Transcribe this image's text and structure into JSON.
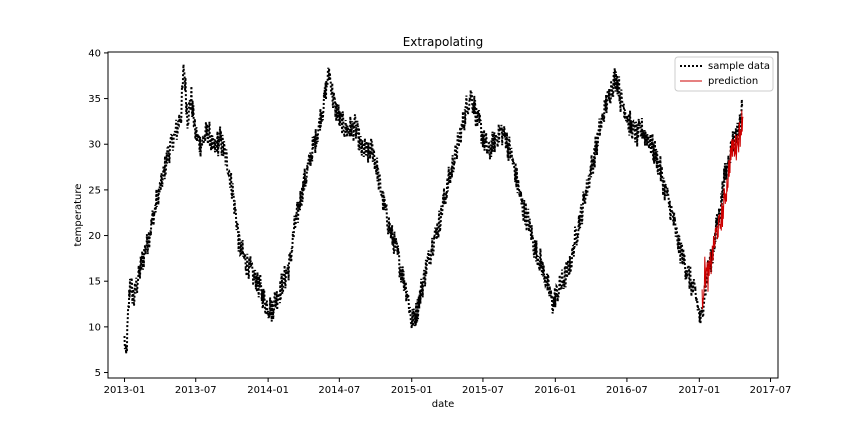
{
  "chart_data": {
    "type": "line",
    "title": "Extrapolating",
    "xlabel": "date",
    "ylabel": "temperature",
    "xlim": [
      "2012-11-20",
      "2017-07-20"
    ],
    "ylim": [
      4.4,
      40.1
    ],
    "xticks": [
      "2013-01",
      "2013-07",
      "2014-01",
      "2014-07",
      "2015-01",
      "2015-07",
      "2016-01",
      "2016-07",
      "2017-01",
      "2017-07"
    ],
    "yticks": [
      5,
      10,
      15,
      20,
      25,
      30,
      35,
      40
    ],
    "grid": false,
    "legend_position": "top-right",
    "series": [
      {
        "name": "sample data",
        "color": "#000000",
        "style": "dotted",
        "anchors": [
          [
            "2013-01-01",
            8.5
          ],
          [
            "2013-01-05",
            6.5
          ],
          [
            "2013-01-10",
            11
          ],
          [
            "2013-01-15",
            15
          ],
          [
            "2013-01-25",
            13
          ],
          [
            "2013-02-05",
            15.5
          ],
          [
            "2013-02-20",
            18
          ],
          [
            "2013-03-01",
            19.5
          ],
          [
            "2013-03-15",
            22
          ],
          [
            "2013-03-25",
            24
          ],
          [
            "2013-04-10",
            26.5
          ],
          [
            "2013-04-25",
            29.5
          ],
          [
            "2013-05-10",
            31
          ],
          [
            "2013-05-25",
            33.5
          ],
          [
            "2013-06-01",
            38.5
          ],
          [
            "2013-06-10",
            33
          ],
          [
            "2013-06-20",
            35
          ],
          [
            "2013-07-01",
            31
          ],
          [
            "2013-07-15",
            30
          ],
          [
            "2013-08-01",
            31.5
          ],
          [
            "2013-08-15",
            29.5
          ],
          [
            "2013-09-01",
            30.5
          ],
          [
            "2013-09-20",
            28
          ],
          [
            "2013-10-01",
            25.5
          ],
          [
            "2013-10-10",
            22.5
          ],
          [
            "2013-10-20",
            19
          ],
          [
            "2013-11-01",
            17.5
          ],
          [
            "2013-11-20",
            16
          ],
          [
            "2013-12-10",
            14.5
          ],
          [
            "2013-12-25",
            12.5
          ],
          [
            "2014-01-10",
            12
          ],
          [
            "2014-01-25",
            13.5
          ],
          [
            "2014-02-10",
            15
          ],
          [
            "2014-02-25",
            17
          ],
          [
            "2014-03-10",
            21
          ],
          [
            "2014-03-25",
            24
          ],
          [
            "2014-04-10",
            27
          ],
          [
            "2014-04-25",
            29.5
          ],
          [
            "2014-05-10",
            32
          ],
          [
            "2014-05-25",
            35
          ],
          [
            "2014-06-05",
            38
          ],
          [
            "2014-06-15",
            35
          ],
          [
            "2014-06-25",
            33.5
          ],
          [
            "2014-07-10",
            32
          ],
          [
            "2014-07-25",
            31.5
          ],
          [
            "2014-08-10",
            32
          ],
          [
            "2014-08-25",
            29.5
          ],
          [
            "2014-09-10",
            29
          ],
          [
            "2014-09-25",
            29.5
          ],
          [
            "2014-10-10",
            26
          ],
          [
            "2014-10-25",
            23
          ],
          [
            "2014-11-10",
            20
          ],
          [
            "2014-11-25",
            18
          ],
          [
            "2014-12-10",
            15.5
          ],
          [
            "2014-12-20",
            14
          ],
          [
            "2015-01-01",
            10.5
          ],
          [
            "2015-01-15",
            12
          ],
          [
            "2015-01-25",
            14
          ],
          [
            "2015-02-10",
            17
          ],
          [
            "2015-02-25",
            19.5
          ],
          [
            "2015-03-10",
            21
          ],
          [
            "2015-03-20",
            23
          ],
          [
            "2015-04-05",
            26
          ],
          [
            "2015-04-20",
            28.5
          ],
          [
            "2015-05-05",
            31
          ],
          [
            "2015-05-20",
            34
          ],
          [
            "2015-06-01",
            35.5
          ],
          [
            "2015-06-15",
            33
          ],
          [
            "2015-07-01",
            31
          ],
          [
            "2015-07-15",
            29
          ],
          [
            "2015-08-01",
            30.5
          ],
          [
            "2015-08-15",
            31.5
          ],
          [
            "2015-08-25",
            31
          ],
          [
            "2015-09-10",
            29
          ],
          [
            "2015-09-25",
            26
          ],
          [
            "2015-10-10",
            23
          ],
          [
            "2015-10-25",
            21.5
          ],
          [
            "2015-11-10",
            18.5
          ],
          [
            "2015-11-25",
            17
          ],
          [
            "2015-12-10",
            15
          ],
          [
            "2015-12-25",
            12.5
          ],
          [
            "2016-01-10",
            14
          ],
          [
            "2016-01-25",
            15.5
          ],
          [
            "2016-02-10",
            17
          ],
          [
            "2016-02-20",
            19.5
          ],
          [
            "2016-03-10",
            23
          ],
          [
            "2016-03-25",
            26
          ],
          [
            "2016-04-10",
            29
          ],
          [
            "2016-04-25",
            32
          ],
          [
            "2016-05-10",
            34.5
          ],
          [
            "2016-05-25",
            36.5
          ],
          [
            "2016-06-05",
            37.5
          ],
          [
            "2016-06-15",
            35
          ],
          [
            "2016-06-25",
            34
          ],
          [
            "2016-07-10",
            32
          ],
          [
            "2016-07-25",
            31
          ],
          [
            "2016-08-10",
            31.5
          ],
          [
            "2016-08-25",
            30.5
          ],
          [
            "2016-09-10",
            29
          ],
          [
            "2016-09-25",
            27
          ],
          [
            "2016-10-10",
            24.5
          ],
          [
            "2016-10-25",
            22
          ],
          [
            "2016-11-10",
            19
          ],
          [
            "2016-11-25",
            17
          ],
          [
            "2016-12-10",
            15
          ],
          [
            "2016-12-25",
            13
          ],
          [
            "2017-01-05",
            10.5
          ],
          [
            "2017-01-15",
            14
          ],
          [
            "2017-01-25",
            16.5
          ],
          [
            "2017-02-05",
            18.5
          ],
          [
            "2017-02-15",
            21
          ],
          [
            "2017-02-25",
            23.5
          ],
          [
            "2017-03-05",
            26
          ],
          [
            "2017-03-15",
            28
          ],
          [
            "2017-03-25",
            30
          ],
          [
            "2017-04-05",
            31
          ],
          [
            "2017-04-15",
            32.5
          ],
          [
            "2017-04-20",
            34
          ]
        ]
      },
      {
        "name": "prediction",
        "color": "#cc0000",
        "style": "solid",
        "anchors": [
          [
            "2017-01-08",
            12.5
          ],
          [
            "2017-01-15",
            16
          ],
          [
            "2017-01-25",
            15.5
          ],
          [
            "2017-02-05",
            18.5
          ],
          [
            "2017-02-15",
            20.5
          ],
          [
            "2017-02-25",
            21.5
          ],
          [
            "2017-03-05",
            23.5
          ],
          [
            "2017-03-15",
            26.5
          ],
          [
            "2017-03-25",
            29.5
          ],
          [
            "2017-04-05",
            30
          ],
          [
            "2017-04-15",
            31.5
          ],
          [
            "2017-04-22",
            33
          ]
        ]
      }
    ]
  }
}
